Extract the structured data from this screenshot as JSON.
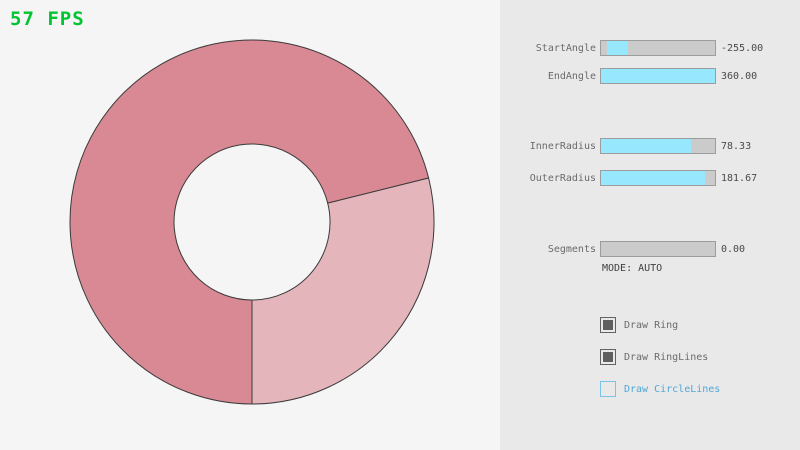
{
  "fps_counter": "57 FPS",
  "ring": {
    "colors": {
      "dark_segment": "#d98994",
      "light_segment": "#e5b5bc",
      "outline": "#3a3a3a"
    }
  },
  "panel": {
    "sliders": [
      {
        "id": "start-angle",
        "label": "StartAngle",
        "value": "-255.00",
        "fill_pct": 19,
        "fill_left_pct": 5
      },
      {
        "id": "end-angle",
        "label": "EndAngle",
        "value": "360.00",
        "fill_pct": 100
      },
      {
        "id": "inner-radius",
        "label": "InnerRadius",
        "value": "78.33",
        "fill_pct": 79
      },
      {
        "id": "outer-radius",
        "label": "OuterRadius",
        "value": "181.67",
        "fill_pct": 91
      },
      {
        "id": "segments",
        "label": "Segments",
        "value": "0.00",
        "fill_pct": 0
      }
    ],
    "mode_text": "MODE: AUTO",
    "checkboxes": [
      {
        "label": "Draw Ring",
        "checked": true
      },
      {
        "label": "Draw RingLines",
        "checked": true
      },
      {
        "label": "Draw CircleLines",
        "checked": false
      }
    ],
    "accent_colors": {
      "slider_fill": "#97e8ff",
      "fps_green": "#00c431",
      "checkbox_blue": "#4fa8d8"
    }
  }
}
